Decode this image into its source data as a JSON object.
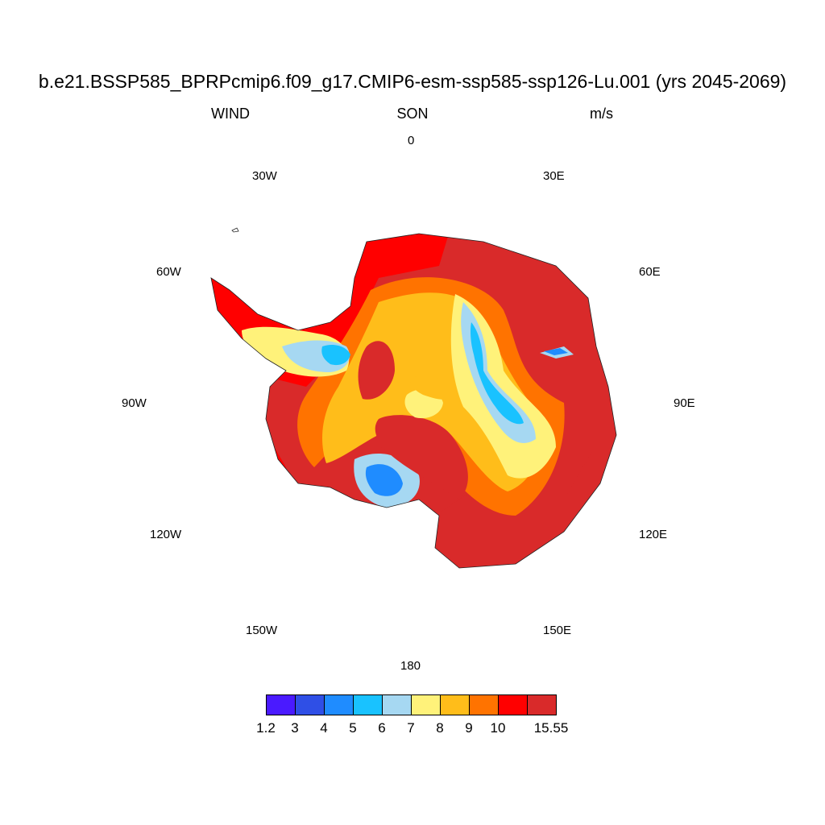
{
  "header": {
    "title": "b.e21.BSSP585_BPRPcmip6.f09_g17.CMIP6-esm-ssp585-ssp126-Lu.001 (yrs 2045-2069)",
    "variable": "WIND",
    "season": "SON",
    "units": "m/s"
  },
  "map": {
    "projection": "south-polar-stereographic",
    "longitude_labels": [
      "0",
      "30E",
      "60E",
      "90E",
      "120E",
      "150E",
      "180",
      "150W",
      "120W",
      "90W",
      "60W",
      "30W"
    ]
  },
  "colorbar": {
    "labels": [
      "1.2",
      "3",
      "4",
      "5",
      "6",
      "7",
      "8",
      "9",
      "10",
      "15.55"
    ],
    "colors": [
      "#4a1aff",
      "#2f4fe6",
      "#1f8cff",
      "#19c2ff",
      "#a6d8f2",
      "#fff27a",
      "#ffbd1a",
      "#ff7300",
      "#ff0000",
      "#d92a2a"
    ]
  },
  "chart_data": {
    "type": "heatmap",
    "field": "WIND",
    "units": "m/s",
    "season": "SON",
    "levels": [
      1.2,
      3,
      4,
      5,
      6,
      7,
      8,
      9,
      10,
      15.55
    ],
    "color_scale": [
      "#4a1aff",
      "#2f4fe6",
      "#1f8cff",
      "#19c2ff",
      "#a6d8f2",
      "#fff27a",
      "#ffbd1a",
      "#ff7300",
      "#ff0000",
      "#d92a2a"
    ]
  }
}
